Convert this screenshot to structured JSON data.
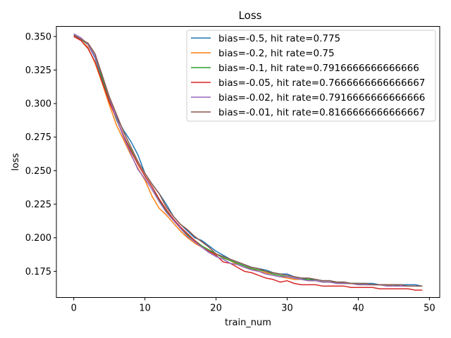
{
  "chart_data": {
    "type": "line",
    "title": "Loss",
    "xlabel": "train_num",
    "ylabel": "loss",
    "xlim": [
      -2.45,
      51.45
    ],
    "ylim": [
      0.1555,
      0.3575
    ],
    "xticks": [
      0,
      10,
      20,
      30,
      40,
      50
    ],
    "yticks": [
      0.175,
      0.2,
      0.225,
      0.25,
      0.275,
      0.3,
      0.325,
      0.35
    ],
    "ytick_labels": [
      "0.175",
      "0.200",
      "0.225",
      "0.250",
      "0.275",
      "0.300",
      "0.325",
      "0.350"
    ],
    "grid": false,
    "legend_position": "top-right",
    "x": [
      0,
      1,
      2,
      3,
      4,
      5,
      6,
      7,
      8,
      9,
      10,
      11,
      12,
      13,
      14,
      15,
      16,
      17,
      18,
      19,
      20,
      21,
      22,
      23,
      24,
      25,
      26,
      27,
      28,
      29,
      30,
      31,
      32,
      33,
      34,
      35,
      36,
      37,
      38,
      39,
      40,
      41,
      42,
      43,
      44,
      45,
      46,
      47,
      48,
      49
    ],
    "series": [
      {
        "name": "bias=-0.5, hit rate=0.775",
        "color": "#1f77b4",
        "values": [
          0.351,
          0.348,
          0.344,
          0.334,
          0.318,
          0.302,
          0.29,
          0.28,
          0.272,
          0.262,
          0.248,
          0.24,
          0.233,
          0.225,
          0.216,
          0.21,
          0.205,
          0.2,
          0.198,
          0.194,
          0.19,
          0.187,
          0.184,
          0.182,
          0.18,
          0.178,
          0.177,
          0.176,
          0.174,
          0.173,
          0.173,
          0.171,
          0.17,
          0.169,
          0.169,
          0.168,
          0.168,
          0.167,
          0.167,
          0.166,
          0.166,
          0.166,
          0.166,
          0.165,
          0.165,
          0.165,
          0.165,
          0.165,
          0.165,
          0.164
        ]
      },
      {
        "name": "bias=-0.2, hit rate=0.75",
        "color": "#ff7f0e",
        "values": [
          0.35,
          0.347,
          0.342,
          0.33,
          0.315,
          0.299,
          0.284,
          0.273,
          0.262,
          0.252,
          0.243,
          0.231,
          0.222,
          0.217,
          0.211,
          0.205,
          0.2,
          0.196,
          0.193,
          0.19,
          0.188,
          0.185,
          0.183,
          0.18,
          0.178,
          0.177,
          0.175,
          0.174,
          0.172,
          0.171,
          0.17,
          0.169,
          0.169,
          0.168,
          0.168,
          0.167,
          0.167,
          0.166,
          0.166,
          0.166,
          0.165,
          0.165,
          0.165,
          0.165,
          0.165,
          0.164,
          0.164,
          0.164,
          0.164,
          0.164
        ]
      },
      {
        "name": "bias=-0.1, hit rate=0.7916666666666666",
        "color": "#2ca02c",
        "values": [
          0.351,
          0.348,
          0.344,
          0.335,
          0.319,
          0.303,
          0.288,
          0.276,
          0.266,
          0.255,
          0.246,
          0.238,
          0.228,
          0.22,
          0.214,
          0.207,
          0.202,
          0.198,
          0.194,
          0.191,
          0.188,
          0.185,
          0.183,
          0.181,
          0.179,
          0.177,
          0.176,
          0.175,
          0.173,
          0.172,
          0.171,
          0.17,
          0.169,
          0.169,
          0.168,
          0.167,
          0.167,
          0.167,
          0.166,
          0.166,
          0.166,
          0.165,
          0.165,
          0.165,
          0.165,
          0.165,
          0.164,
          0.164,
          0.164,
          0.164
        ]
      },
      {
        "name": "bias=-0.05, hit rate=0.7666666666666667",
        "color": "#d62728",
        "values": [
          0.35,
          0.347,
          0.341,
          0.331,
          0.316,
          0.301,
          0.289,
          0.276,
          0.265,
          0.255,
          0.246,
          0.238,
          0.229,
          0.221,
          0.214,
          0.208,
          0.203,
          0.198,
          0.193,
          0.19,
          0.187,
          0.182,
          0.181,
          0.178,
          0.175,
          0.174,
          0.172,
          0.17,
          0.169,
          0.167,
          0.168,
          0.166,
          0.165,
          0.165,
          0.165,
          0.164,
          0.164,
          0.164,
          0.164,
          0.163,
          0.163,
          0.163,
          0.163,
          0.162,
          0.162,
          0.162,
          0.162,
          0.162,
          0.161,
          0.161
        ]
      },
      {
        "name": "bias=-0.02, hit rate=0.7916666666666666",
        "color": "#9467bd",
        "values": [
          0.352,
          0.349,
          0.344,
          0.335,
          0.321,
          0.304,
          0.289,
          0.275,
          0.263,
          0.251,
          0.244,
          0.236,
          0.227,
          0.219,
          0.213,
          0.207,
          0.201,
          0.197,
          0.193,
          0.189,
          0.186,
          0.184,
          0.181,
          0.18,
          0.178,
          0.176,
          0.175,
          0.173,
          0.172,
          0.171,
          0.171,
          0.17,
          0.169,
          0.168,
          0.168,
          0.167,
          0.167,
          0.166,
          0.166,
          0.166,
          0.165,
          0.165,
          0.165,
          0.165,
          0.164,
          0.164,
          0.164,
          0.164,
          0.164,
          0.164
        ]
      },
      {
        "name": "bias=-0.01, hit rate=0.8166666666666667",
        "color": "#8c564b",
        "values": [
          0.351,
          0.348,
          0.345,
          0.337,
          0.321,
          0.305,
          0.292,
          0.279,
          0.268,
          0.257,
          0.248,
          0.24,
          0.233,
          0.223,
          0.216,
          0.21,
          0.206,
          0.201,
          0.197,
          0.193,
          0.188,
          0.186,
          0.184,
          0.182,
          0.18,
          0.178,
          0.177,
          0.175,
          0.174,
          0.173,
          0.172,
          0.171,
          0.17,
          0.17,
          0.169,
          0.168,
          0.168,
          0.167,
          0.167,
          0.166,
          0.166,
          0.166,
          0.165,
          0.165,
          0.165,
          0.165,
          0.165,
          0.164,
          0.164,
          0.164
        ]
      }
    ]
  }
}
